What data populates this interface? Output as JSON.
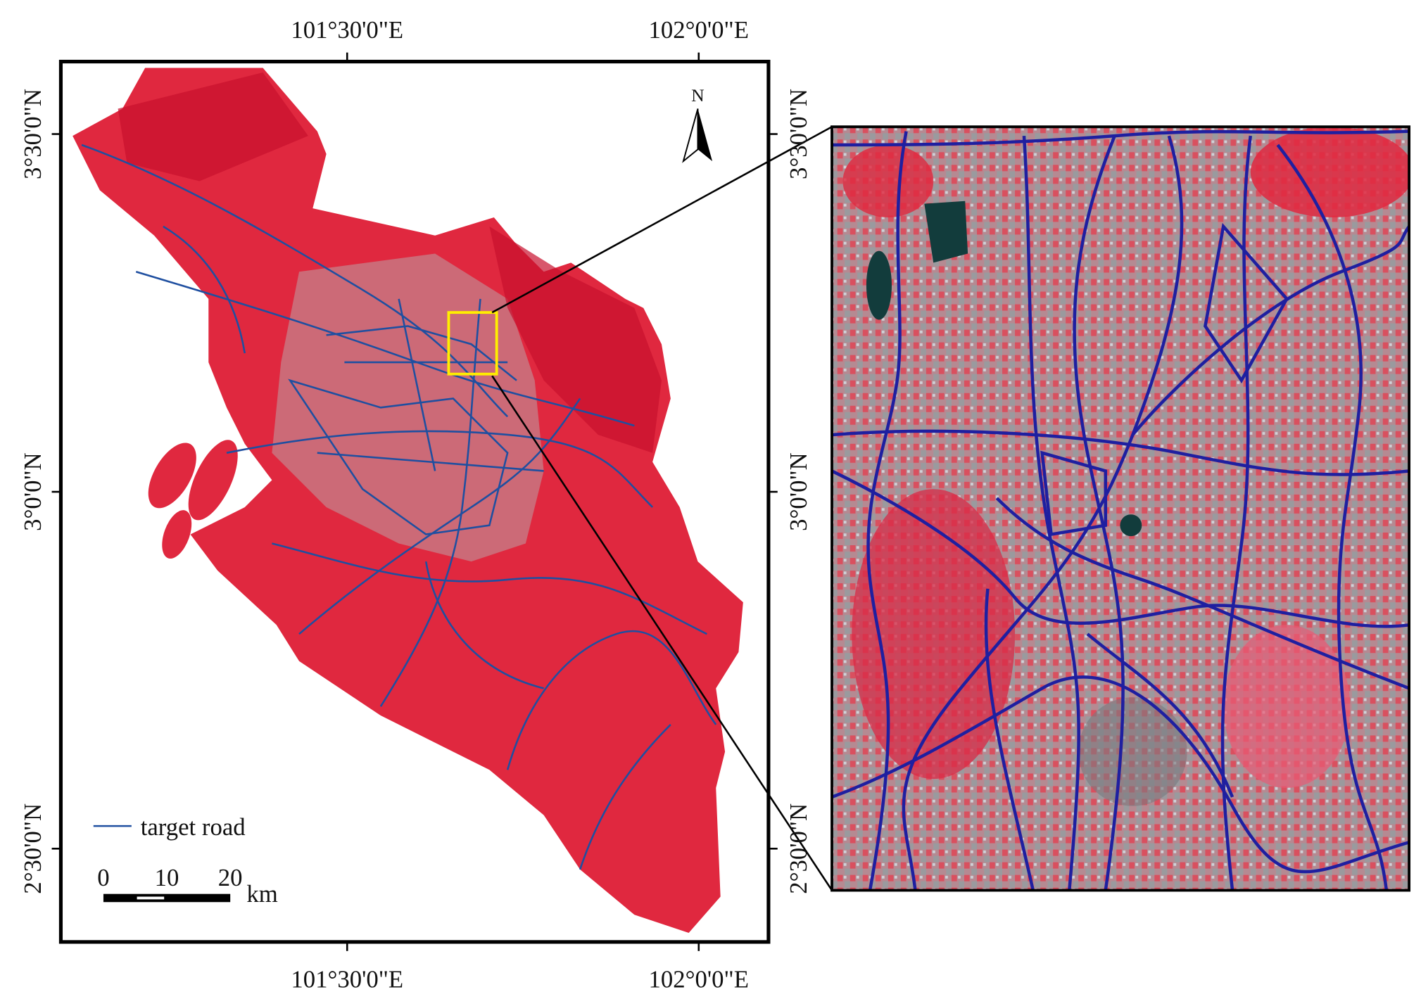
{
  "map": {
    "x_labels": [
      "101°30'0\"E",
      "102°0'0\"E"
    ],
    "y_labels": [
      "3°30'0\"N",
      "3°0'0\"N",
      "2°30'0\"N"
    ],
    "north_arrow": "N",
    "legend": "target road",
    "scale_bar": {
      "ticks": [
        "0",
        "10",
        "20"
      ],
      "unit": "km"
    }
  }
}
